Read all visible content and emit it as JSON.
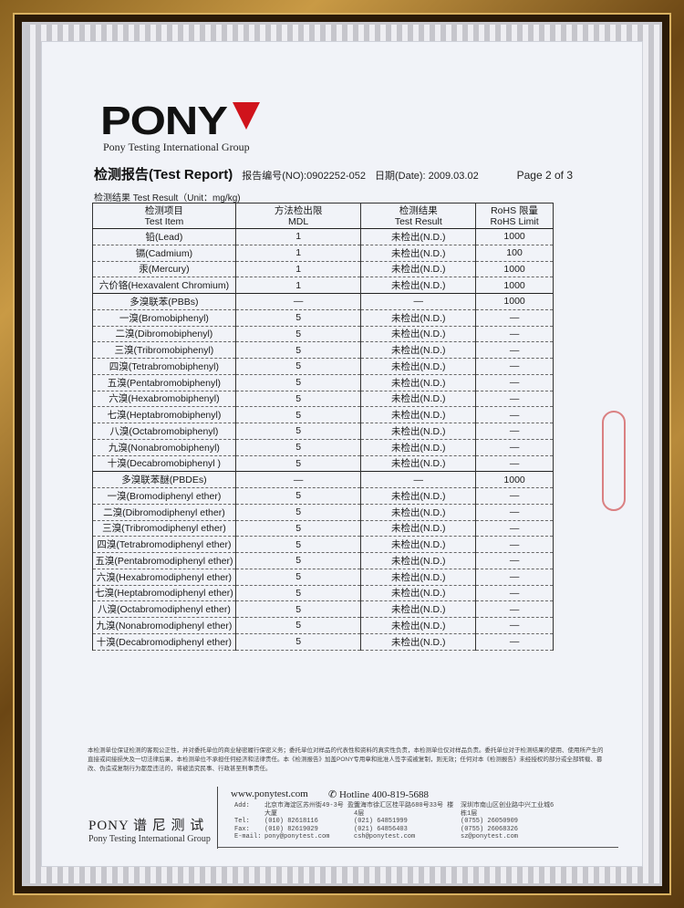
{
  "logo": {
    "text": "PONY",
    "group": "Pony Testing International Group"
  },
  "report": {
    "title": "检测报告(Test Report)",
    "number": "报告编号(NO):0902252-052",
    "date": "日期(Date): 2009.03.02",
    "page": "Page 2 of 3",
    "unit": "检测结果 Test Result（Unit：mg/kg)"
  },
  "table": {
    "headers": [
      [
        "检测项目",
        "Test Item"
      ],
      [
        "方法检出限",
        "MDL"
      ],
      [
        "检测结果",
        "Test Result"
      ],
      [
        "RoHS 限量",
        "RoHS Limit"
      ]
    ],
    "rows": [
      [
        "铅(Lead)",
        "1",
        "未检出(N.D.)",
        "1000"
      ],
      [
        "镉(Cadmium)",
        "1",
        "未检出(N.D.)",
        "100"
      ],
      [
        "汞(Mercury)",
        "1",
        "未检出(N.D.)",
        "1000"
      ],
      [
        "六价铬(Hexavalent Chromium)",
        "1",
        "未检出(N.D.)",
        "1000"
      ],
      [
        "多溴联苯(PBBs)",
        "—",
        "—",
        "1000"
      ],
      [
        "一溴(Bromobiphenyl)",
        "5",
        "未检出(N.D.)",
        "—"
      ],
      [
        "二溴(Dibromobiphenyl)",
        "5",
        "未检出(N.D.)",
        "—"
      ],
      [
        "三溴(Tribromobiphenyl)",
        "5",
        "未检出(N.D.)",
        "—"
      ],
      [
        "四溴(Tetrabromobiphenyl)",
        "5",
        "未检出(N.D.)",
        "—"
      ],
      [
        "五溴(Pentabromobiphenyl)",
        "5",
        "未检出(N.D.)",
        "—"
      ],
      [
        "六溴(Hexabromobiphenyl)",
        "5",
        "未检出(N.D.)",
        "—"
      ],
      [
        "七溴(Heptabromobiphenyl)",
        "5",
        "未检出(N.D.)",
        "—"
      ],
      [
        "八溴(Octabromobiphenyl)",
        "5",
        "未检出(N.D.)",
        "—"
      ],
      [
        "九溴(Nonabromobiphenyl)",
        "5",
        "未检出(N.D.)",
        "—"
      ],
      [
        "十溴(Decabromobiphenyl )",
        "5",
        "未检出(N.D.)",
        "—"
      ],
      [
        "多溴联苯醚(PBDEs)",
        "—",
        "—",
        "1000"
      ],
      [
        "一溴(Bromodiphenyl ether)",
        "5",
        "未检出(N.D.)",
        "—"
      ],
      [
        "二溴(Dibromodiphenyl ether)",
        "5",
        "未检出(N.D.)",
        "—"
      ],
      [
        "三溴(Tribromodiphenyl ether)",
        "5",
        "未检出(N.D.)",
        "—"
      ],
      [
        "四溴(Tetrabromodiphenyl ether)",
        "5",
        "未检出(N.D.)",
        "—"
      ],
      [
        "五溴(Pentabromodiphenyl ether)",
        "5",
        "未检出(N.D.)",
        "—"
      ],
      [
        "六溴(Hexabromodiphenyl ether)",
        "5",
        "未检出(N.D.)",
        "—"
      ],
      [
        "七溴(Heptabromodiphenyl ether)",
        "5",
        "未检出(N.D.)",
        "—"
      ],
      [
        "八溴(Octabromodiphenyl ether)",
        "5",
        "未检出(N.D.)",
        "—"
      ],
      [
        "九溴(Nonabromodiphenyl ether)",
        "5",
        "未检出(N.D.)",
        "—"
      ],
      [
        "十溴(Decabromodiphenyl ether)",
        "5",
        "未检出(N.D.)",
        "—"
      ]
    ]
  },
  "footer": {
    "disclaimer": "本检测单位保证检测的客观公正性，并对委托单位的商业秘密履行保密义务；委托单位对样品的代表性和资料的真实性负责，本检测单位仅对样品负责。委托单位对于检测结果的使用、使用所产生的直接或间接损失及一切法律后果，本检测单位不承担任何经济和法律责任。本《检测报告》加盖PONY专用章和批准人签字或被复制，则无效；任何对本《检测报告》未经授权的部分或全部转载、篡改、伪造或复制行为都是违法的，将被追究民事、行政甚至刑事责任。",
    "brand_cn": "PONY 谱 尼 测 试",
    "brand_en": "Pony Testing International Group",
    "website": "www.ponytest.com",
    "hotline": "Hotline 400-819-5688",
    "labels": [
      "Add:",
      "Tel:",
      "Fax:",
      "E-mail:"
    ],
    "offices": [
      {
        "add": "北京市海淀区苏州街49-3号 盈智大厦",
        "tel": "(010) 82618116",
        "fax": "(010) 82619029",
        "email": "pony@ponytest.com"
      },
      {
        "add": "上海市徐汇区桂平路680号33号 楼4层",
        "tel": "(021) 64851999",
        "fax": "(021) 64856403",
        "email": "csh@ponytest.com"
      },
      {
        "add": "深圳市南山区创业路中兴工业城6 栋1层",
        "tel": "(0755) 26050909",
        "fax": "(0755) 26068326",
        "email": "sz@ponytest.com"
      }
    ]
  },
  "colors": {
    "brand_red": "#d0131b",
    "frame_gold": "#b88a3a"
  }
}
